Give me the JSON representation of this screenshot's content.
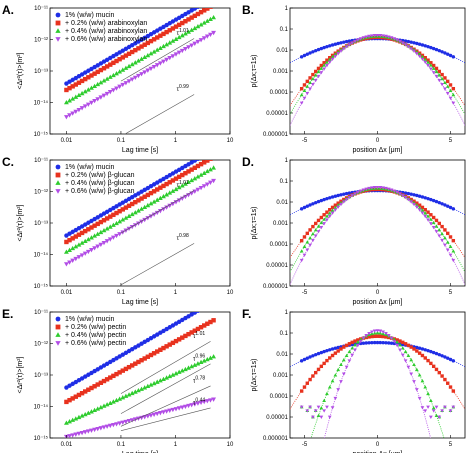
{
  "figure": {
    "colors": {
      "blue": "#1f2ee6",
      "red": "#e8321e",
      "green": "#2ecc2e",
      "purple": "#b24de6",
      "fit_line": "#555555"
    }
  },
  "panels": [
    {
      "id": "A",
      "kind": "msd",
      "letter": "A.",
      "chart_data": {
        "type": "scatter",
        "xscale": "log",
        "yscale": "log",
        "xlim": [
          0.005,
          10
        ],
        "ylim": [
          1e-15,
          1e-11
        ],
        "xticks": [
          {
            "v": 0.01,
            "label": "0.01"
          },
          {
            "v": 0.1,
            "label": "0.1"
          },
          {
            "v": 1,
            "label": "1"
          },
          {
            "v": 10,
            "label": "10"
          }
        ],
        "yticks": [
          {
            "v": 1e-15,
            "label": "10⁻¹⁵"
          },
          {
            "v": 1e-14,
            "label": "10⁻¹⁴"
          },
          {
            "v": 1e-13,
            "label": "10⁻¹³"
          },
          {
            "v": 1e-12,
            "label": "10⁻¹²"
          },
          {
            "v": 1e-11,
            "label": "10⁻¹¹"
          }
        ],
        "xlabel": "Lag time [s]",
        "ylabel": "<Δr²(τ)>[m²]",
        "legend": "top-left",
        "series": [
          {
            "name": "1% (w/w) mucin",
            "color": "blue",
            "marker": "circle",
            "y_at_001": 4e-14,
            "exponent": 1.01
          },
          {
            "name": "+ 0.2% (w/w) arabinoxylan",
            "color": "red",
            "marker": "square",
            "y_at_001": 2.5e-14,
            "exponent": 1.0
          },
          {
            "name": "+ 0.4% (w/w) arabinoxylan",
            "color": "green",
            "marker": "triangle-up",
            "y_at_001": 1e-14,
            "exponent": 1.0
          },
          {
            "name": "+ 0.6% (w/w) arabinoxylan",
            "color": "purple",
            "marker": "triangle-down",
            "y_at_001": 3.5e-15,
            "exponent": 0.99
          }
        ],
        "annotations": [
          {
            "text": "τ^1.01",
            "x": 1.0,
            "y": 1.2e-12
          },
          {
            "text": "τ^0.99",
            "x": 1.0,
            "y": 2e-14
          }
        ]
      }
    },
    {
      "id": "B",
      "kind": "gauss",
      "letter": "B.",
      "chart_data": {
        "type": "scatter",
        "yscale": "log",
        "xlim": [
          -6,
          6
        ],
        "ylim": [
          1e-06,
          1
        ],
        "xticks": [
          {
            "v": -5,
            "label": "-5"
          },
          {
            "v": 0,
            "label": "0"
          },
          {
            "v": 5,
            "label": "5"
          }
        ],
        "yticks": [
          {
            "v": 1e-06,
            "label": "0.000001"
          },
          {
            "v": 1e-05,
            "label": "0.00001"
          },
          {
            "v": 0.0001,
            "label": "0.0001"
          },
          {
            "v": 0.001,
            "label": "0.001"
          },
          {
            "v": 0.01,
            "label": "0.01"
          },
          {
            "v": 0.1,
            "label": "0.1"
          },
          {
            "v": 1,
            "label": "1"
          }
        ],
        "xlabel": "position Δx [μm]",
        "ylabel": "p(Δx;τ=1s)",
        "series": [
          {
            "color": "blue",
            "marker": "circle",
            "peak": 0.035,
            "sigma": 2.6
          },
          {
            "color": "red",
            "marker": "square",
            "peak": 0.04,
            "sigma": 1.55
          },
          {
            "color": "green",
            "marker": "triangle-up",
            "peak": 0.045,
            "sigma": 1.45
          },
          {
            "color": "purple",
            "marker": "triangle-down",
            "peak": 0.05,
            "sigma": 1.35
          }
        ]
      }
    },
    {
      "id": "C",
      "kind": "msd",
      "letter": "C.",
      "chart_data": {
        "type": "scatter",
        "xscale": "log",
        "yscale": "log",
        "xlim": [
          0.005,
          10
        ],
        "ylim": [
          1e-15,
          1e-11
        ],
        "xticks": [
          {
            "v": 0.01,
            "label": "0.01"
          },
          {
            "v": 0.1,
            "label": "0.1"
          },
          {
            "v": 1,
            "label": "1"
          },
          {
            "v": 10,
            "label": "10"
          }
        ],
        "yticks": [
          {
            "v": 1e-15,
            "label": "10⁻¹⁵"
          },
          {
            "v": 1e-14,
            "label": "10⁻¹⁴"
          },
          {
            "v": 1e-13,
            "label": "10⁻¹³"
          },
          {
            "v": 1e-12,
            "label": "10⁻¹²"
          },
          {
            "v": 1e-11,
            "label": "10⁻¹¹"
          }
        ],
        "xlabel": "Lag time [s]",
        "ylabel": "<Δr²(τ)>[m²]",
        "legend": "top-left",
        "series": [
          {
            "name": "1% (w/w) mucin",
            "color": "blue",
            "marker": "circle",
            "y_at_001": 4e-14,
            "exponent": 1.01
          },
          {
            "name": "+ 0.2% (w/w) β-glucan",
            "color": "red",
            "marker": "square",
            "y_at_001": 2.5e-14,
            "exponent": 1.0
          },
          {
            "name": "+ 0.4% (w/w) β-glucan",
            "color": "green",
            "marker": "triangle-up",
            "y_at_001": 1.2e-14,
            "exponent": 0.99
          },
          {
            "name": "+ 0.6% (w/w) β-glucan",
            "color": "purple",
            "marker": "triangle-down",
            "y_at_001": 5e-15,
            "exponent": 0.98
          }
        ],
        "annotations": [
          {
            "text": "τ^1.01",
            "x": 1.0,
            "y": 1.2e-12
          },
          {
            "text": "τ^0.98",
            "x": 1.0,
            "y": 2.5e-14
          }
        ]
      }
    },
    {
      "id": "D",
      "kind": "gauss",
      "letter": "D.",
      "chart_data": {
        "type": "scatter",
        "yscale": "log",
        "xlim": [
          -6,
          6
        ],
        "ylim": [
          1e-06,
          1
        ],
        "xticks": [
          {
            "v": -5,
            "label": "-5"
          },
          {
            "v": 0,
            "label": "0"
          },
          {
            "v": 5,
            "label": "5"
          }
        ],
        "yticks": [
          {
            "v": 1e-06,
            "label": "0.000001"
          },
          {
            "v": 1e-05,
            "label": "0.00001"
          },
          {
            "v": 0.0001,
            "label": "0.0001"
          },
          {
            "v": 0.001,
            "label": "0.001"
          },
          {
            "v": 0.01,
            "label": "0.01"
          },
          {
            "v": 0.1,
            "label": "0.1"
          },
          {
            "v": 1,
            "label": "1"
          }
        ],
        "xlabel": "position Δx [μm]",
        "ylabel": "p(Δx;τ=1s)",
        "series": [
          {
            "color": "blue",
            "marker": "circle",
            "peak": 0.035,
            "sigma": 2.6
          },
          {
            "color": "red",
            "marker": "square",
            "peak": 0.04,
            "sigma": 1.55
          },
          {
            "color": "green",
            "marker": "triangle-up",
            "peak": 0.045,
            "sigma": 1.4
          },
          {
            "color": "purple",
            "marker": "triangle-down",
            "peak": 0.05,
            "sigma": 1.3
          }
        ]
      }
    },
    {
      "id": "E",
      "kind": "msd",
      "letter": "E.",
      "chart_data": {
        "type": "scatter",
        "xscale": "log",
        "yscale": "log",
        "xlim": [
          0.005,
          10
        ],
        "ylim": [
          1e-15,
          1e-11
        ],
        "xticks": [
          {
            "v": 0.01,
            "label": "0.01"
          },
          {
            "v": 0.1,
            "label": "0.1"
          },
          {
            "v": 1,
            "label": "1"
          },
          {
            "v": 10,
            "label": "10"
          }
        ],
        "yticks": [
          {
            "v": 1e-15,
            "label": "10⁻¹⁵"
          },
          {
            "v": 1e-14,
            "label": "10⁻¹⁴"
          },
          {
            "v": 1e-13,
            "label": "10⁻¹³"
          },
          {
            "v": 1e-12,
            "label": "10⁻¹²"
          },
          {
            "v": 1e-11,
            "label": "10⁻¹¹"
          }
        ],
        "xlabel": "Lag time [s]",
        "ylabel": "<Δr²(τ)>[m²]",
        "legend": "top-left",
        "series": [
          {
            "name": "1% (w/w) mucin",
            "color": "blue",
            "marker": "circle",
            "y_at_001": 4e-14,
            "exponent": 1.01
          },
          {
            "name": "+ 0.2% (w/w) pectin",
            "color": "red",
            "marker": "square",
            "y_at_001": 1.4e-14,
            "exponent": 0.96
          },
          {
            "name": "+ 0.4% (w/w) pectin",
            "color": "green",
            "marker": "triangle-up",
            "y_at_001": 3e-15,
            "exponent": 0.78
          },
          {
            "name": "+ 0.6% (w/w) pectin",
            "color": "purple",
            "marker": "triangle-down",
            "y_at_001": 1.1e-15,
            "exponent": 0.44
          }
        ],
        "annotations": [
          {
            "text": "τ^1.01",
            "x": 2.0,
            "y": 1.3e-12
          },
          {
            "text": "τ^0.96",
            "x": 2.0,
            "y": 2.5e-13
          },
          {
            "text": "τ^0.78",
            "x": 2.0,
            "y": 5e-14
          },
          {
            "text": "τ^0.44",
            "x": 2.0,
            "y": 1e-14
          }
        ]
      }
    },
    {
      "id": "F",
      "kind": "gauss",
      "letter": "F.",
      "chart_data": {
        "type": "scatter",
        "yscale": "log",
        "xlim": [
          -6,
          6
        ],
        "ylim": [
          1e-06,
          1
        ],
        "xticks": [
          {
            "v": -5,
            "label": "-5"
          },
          {
            "v": 0,
            "label": "0"
          },
          {
            "v": 5,
            "label": "5"
          }
        ],
        "yticks": [
          {
            "v": 1e-06,
            "label": "0.000001"
          },
          {
            "v": 1e-05,
            "label": "0.00001"
          },
          {
            "v": 0.0001,
            "label": "0.0001"
          },
          {
            "v": 0.001,
            "label": "0.001"
          },
          {
            "v": 0.01,
            "label": "0.01"
          },
          {
            "v": 0.1,
            "label": "0.1"
          },
          {
            "v": 1,
            "label": "1"
          }
        ],
        "xlabel": "position Δx [μm]",
        "ylabel": "p(Δx;τ=1s)",
        "series": [
          {
            "color": "blue",
            "marker": "circle",
            "peak": 0.035,
            "sigma": 2.6
          },
          {
            "color": "red",
            "marker": "square",
            "peak": 0.07,
            "sigma": 1.5
          },
          {
            "color": "green",
            "marker": "triangle-up",
            "peak": 0.1,
            "sigma": 0.95
          },
          {
            "color": "purple",
            "marker": "triangle-down",
            "peak": 0.13,
            "sigma": 0.75
          }
        ]
      }
    }
  ]
}
